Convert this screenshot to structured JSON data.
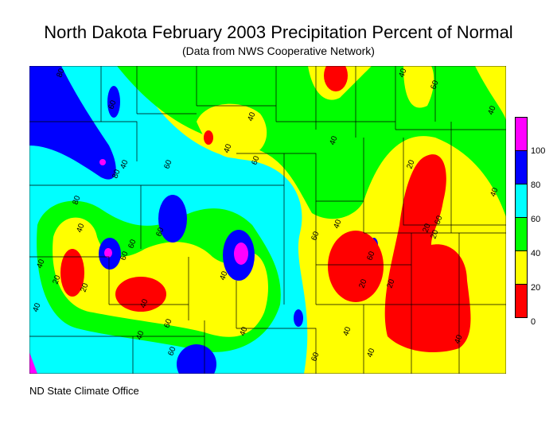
{
  "title": "North Dakota February 2003 Precipitation Percent of Normal",
  "subtitle": "(Data from NWS Cooperative Network)",
  "credit": "ND State Climate Office",
  "legend": {
    "bins": [
      {
        "label": "100",
        "color": "#ff00ff"
      },
      {
        "label": "80",
        "color": "#0000ff"
      },
      {
        "label": "60",
        "color": "#00ffff"
      },
      {
        "label": "40",
        "color": "#00ff00"
      },
      {
        "label": "20",
        "color": "#ffff00"
      },
      {
        "label": "0",
        "color": "#ff0000"
      }
    ]
  },
  "contour_labels": [
    "80",
    "60",
    "80",
    "60",
    "40",
    "40",
    "60",
    "40",
    "40",
    "60",
    "40",
    "40",
    "60",
    "20",
    "20",
    "40",
    "80",
    "60",
    "40",
    "40",
    "20",
    "60",
    "60",
    "40",
    "20",
    "40",
    "60",
    "60",
    "40",
    "40",
    "40",
    "60",
    "60",
    "40",
    "40",
    "20",
    "20",
    "60",
    "20",
    "40",
    "40"
  ]
}
